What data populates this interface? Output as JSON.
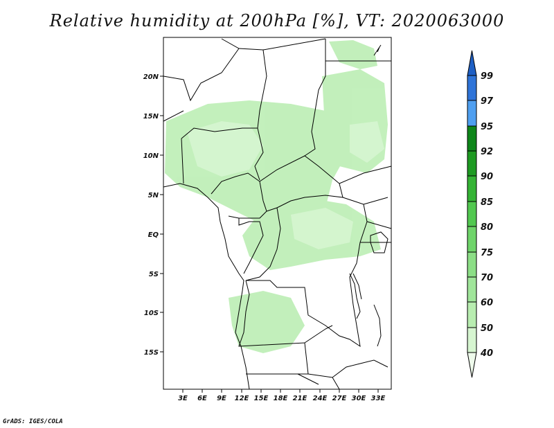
{
  "title": "Relative humidity at 200hPa [%], VT: 2020063000",
  "credit": "GrADS: IGES/COLA",
  "map": {
    "lat_ticks": [
      "20N",
      "15N",
      "10N",
      "5N",
      "EQ",
      "5S",
      "10S",
      "15S"
    ],
    "lon_ticks": [
      "3E",
      "6E",
      "9E",
      "12E",
      "15E",
      "18E",
      "21E",
      "24E",
      "27E",
      "30E",
      "33E"
    ]
  },
  "colorbar": {
    "levels": [
      "40",
      "50",
      "60",
      "70",
      "75",
      "80",
      "85",
      "90",
      "92",
      "95",
      "97",
      "99"
    ],
    "colors": [
      "#eefaeb",
      "#d6f5d0",
      "#b8edb0",
      "#a0e59a",
      "#8cde86",
      "#6fd46a",
      "#52c850",
      "#35b335",
      "#1e9a22",
      "#0e861a",
      "#4f9ff0",
      "#2f74d8",
      "#1e5fc4"
    ]
  }
}
